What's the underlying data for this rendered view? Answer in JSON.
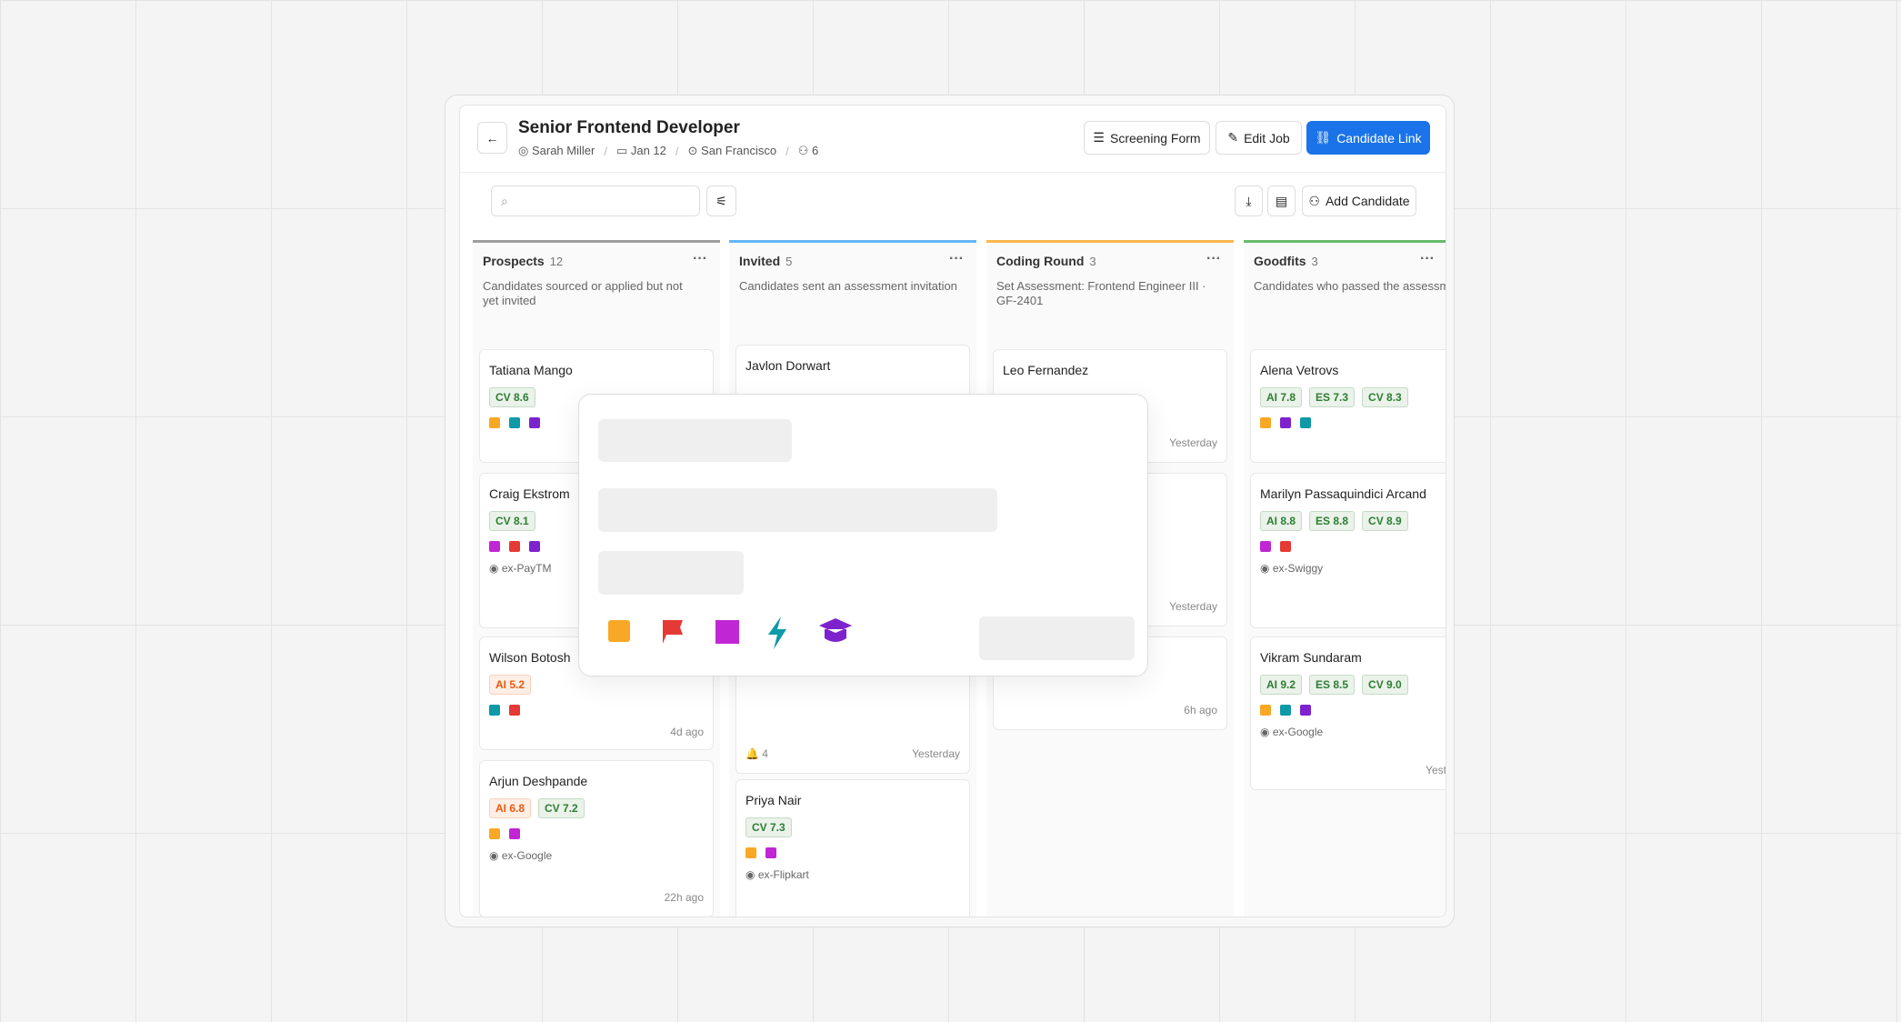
{
  "header": {
    "title": "Senior Frontend Developer",
    "owner": "Sarah Miller",
    "date": "Jan 12",
    "location": "San Francisco",
    "members": "6"
  },
  "actions": {
    "screening": "Screening Form",
    "edit": "Edit Job",
    "link": "Candidate Link",
    "add": "Add Candidate"
  },
  "columns": [
    {
      "name": "Prospects",
      "count": "12",
      "description": "Candidates sourced or applied but not yet invited",
      "color": "#9e9e9e",
      "cards": [
        {
          "name": "Tatiana Mango",
          "chips": [
            {
              "label": "CV 8.6",
              "color": "#2e7d32"
            }
          ]
        },
        {
          "name": "Craig Ekstrom",
          "chips": [
            {
              "label": "CV 8.1",
              "color": "#2e7d32"
            }
          ],
          "company": "ex-PayTM"
        },
        {
          "name": "Wilson Botosh",
          "chips": [
            {
              "label": "AI 5.2",
              "color": "#e8590c"
            }
          ],
          "time": "4d ago"
        },
        {
          "name": "Arjun Deshpande",
          "chips": [
            {
              "label": "AI 6.8",
              "color": "#e8590c"
            },
            {
              "label": "CV 7.2",
              "color": "#2e7d32"
            }
          ],
          "company": "ex-Google",
          "time": "22h ago"
        }
      ]
    },
    {
      "name": "Invited",
      "count": "5",
      "description": "Candidates sent an assessment invitation",
      "color": "#64b5f6",
      "cards": [
        {
          "name": "Javlon Dorwart"
        },
        {
          "bell": "4",
          "time": "Yesterday"
        },
        {
          "name": "Priya Nair",
          "chips": [
            {
              "label": "CV 7.3",
              "color": "#2e7d32"
            }
          ],
          "company": "ex-Flipkart"
        }
      ]
    },
    {
      "name": "Coding Round",
      "count": "3",
      "description": "Set Assessment: Frontend Engineer III · GF-2401",
      "color": "#ffb74d",
      "cards": [
        {
          "name": "Leo Fernandez",
          "time": "Yesterday"
        },
        {
          "time": "Yesterday"
        },
        {
          "time": "6h ago"
        }
      ]
    },
    {
      "name": "Goodfits",
      "count": "3",
      "description": "Candidates who passed the assessment threshold",
      "color": "#66bb6a",
      "cards": [
        {
          "name": "Alena Vetrovs",
          "chips": [
            {
              "label": "AI 7.8",
              "color": "#2e7d32"
            },
            {
              "label": "ES 7.3",
              "color": "#2e7d32"
            },
            {
              "label": "CV 8.3",
              "color": "#2e7d32"
            }
          ]
        },
        {
          "name": "Marilyn Passaquindici Arcand",
          "chips": [
            {
              "label": "AI 8.8",
              "color": "#2e7d32"
            },
            {
              "label": "ES 8.8",
              "color": "#2e7d32"
            },
            {
              "label": "CV 8.9",
              "color": "#2e7d32"
            }
          ],
          "company": "ex-Swiggy"
        },
        {
          "name": "Vikram Sundaram",
          "chips": [
            {
              "label": "AI 9.2",
              "color": "#2e7d32"
            },
            {
              "label": "ES 8.5",
              "color": "#2e7d32"
            },
            {
              "label": "CV 9.0",
              "color": "#2e7d32"
            }
          ],
          "company": "ex-Google",
          "time": "Yesterday"
        }
      ]
    }
  ]
}
